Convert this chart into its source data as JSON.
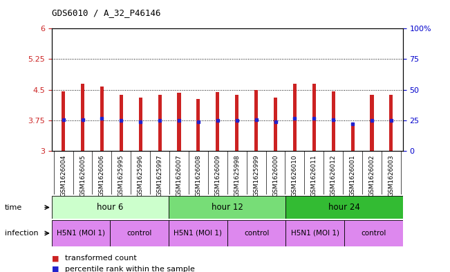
{
  "title": "GDS6010 / A_32_P46146",
  "samples": [
    "GSM1626004",
    "GSM1626005",
    "GSM1626006",
    "GSM1625995",
    "GSM1625996",
    "GSM1625997",
    "GSM1626007",
    "GSM1626008",
    "GSM1626009",
    "GSM1625998",
    "GSM1625999",
    "GSM1626000",
    "GSM1626010",
    "GSM1626011",
    "GSM1626012",
    "GSM1626001",
    "GSM1626002",
    "GSM1626003"
  ],
  "bar_values": [
    4.46,
    4.65,
    4.58,
    4.38,
    4.31,
    4.38,
    4.42,
    4.28,
    4.44,
    4.38,
    4.5,
    4.3,
    4.65,
    4.65,
    4.46,
    3.68,
    4.38,
    4.38
  ],
  "dot_values": [
    3.77,
    3.77,
    3.8,
    3.75,
    3.72,
    3.75,
    3.75,
    3.72,
    3.75,
    3.75,
    3.77,
    3.72,
    3.8,
    3.8,
    3.77,
    3.66,
    3.75,
    3.75
  ],
  "bar_color": "#cc2222",
  "dot_color": "#2222cc",
  "ylim_left": [
    3.0,
    6.0
  ],
  "ylim_right": [
    0,
    100
  ],
  "yticks_left": [
    3.0,
    3.75,
    4.5,
    5.25,
    6.0
  ],
  "ytick_labels_left": [
    "3",
    "3.75",
    "4.5",
    "5.25",
    "6"
  ],
  "yticks_right": [
    0,
    25,
    50,
    75,
    100
  ],
  "ytick_labels_right": [
    "0",
    "25",
    "50",
    "75",
    "100%"
  ],
  "hlines": [
    3.75,
    4.5,
    5.25
  ],
  "time_groups": [
    {
      "label": "hour 6",
      "start": 0,
      "end": 6,
      "color": "#ccffcc"
    },
    {
      "label": "hour 12",
      "start": 6,
      "end": 12,
      "color": "#77dd77"
    },
    {
      "label": "hour 24",
      "start": 12,
      "end": 18,
      "color": "#33bb33"
    }
  ],
  "infection_groups": [
    {
      "label": "H5N1 (MOI 1)",
      "start": 0,
      "end": 3
    },
    {
      "label": "control",
      "start": 3,
      "end": 6
    },
    {
      "label": "H5N1 (MOI 1)",
      "start": 6,
      "end": 9
    },
    {
      "label": "control",
      "start": 9,
      "end": 12
    },
    {
      "label": "H5N1 (MOI 1)",
      "start": 12,
      "end": 15
    },
    {
      "label": "control",
      "start": 15,
      "end": 18
    }
  ],
  "infection_color": "#dd88ee",
  "time_label": "time",
  "infection_label": "infection",
  "legend_bar": "transformed count",
  "legend_dot": "percentile rank within the sample",
  "background_color": "#ffffff",
  "sample_bg_color": "#dddddd",
  "bar_width": 0.18,
  "left_label_color": "#cc2222",
  "right_label_color": "#0000cc"
}
